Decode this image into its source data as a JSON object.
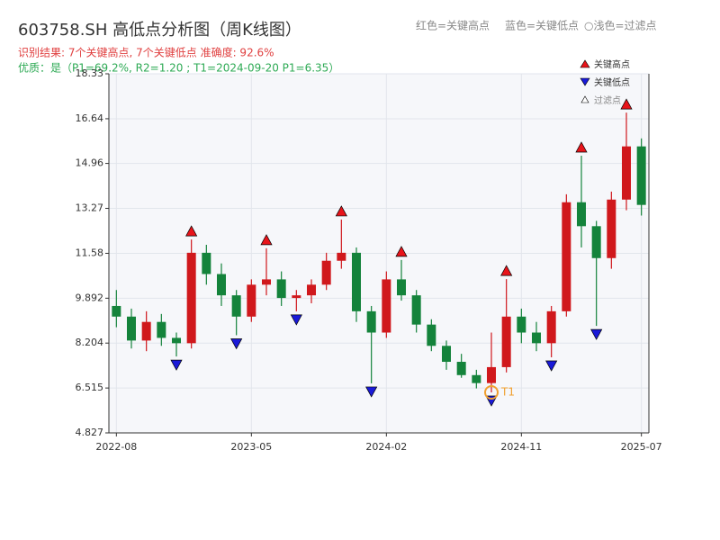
{
  "chart_data": {
    "type": "candlestick",
    "title": "603758.SH 高低点分析图（周K线图）",
    "subtitle": "识别结果: 7个关键高点, 7个关键低点  准确度: 92.6%",
    "quality": "优质：是（P1=69.2%, R2=1.20 ; T1=2024-09-20 P1=6.35）",
    "header_legend": [
      "红色=关键高点",
      "蓝色=关键低点",
      "○浅色=过滤点"
    ],
    "categories": [
      "2022-08",
      "2022-09",
      "2022-10",
      "2022-11",
      "2022-12",
      "2023-01",
      "2023-02",
      "2023-03",
      "2023-04",
      "2023-05",
      "2023-06",
      "2023-07",
      "2023-08",
      "2023-09",
      "2023-10",
      "2023-11",
      "2023-12",
      "2024-01",
      "2024-02",
      "2024-03",
      "2024-04",
      "2024-05",
      "2024-06",
      "2024-07",
      "2024-08",
      "2024-09",
      "2024-10",
      "2024-11",
      "2024-12",
      "2025-01",
      "2025-02",
      "2025-03",
      "2025-04",
      "2025-05",
      "2025-06",
      "2025-07"
    ],
    "open": [
      9.6,
      9.2,
      8.3,
      9.0,
      8.4,
      8.2,
      11.6,
      10.8,
      10.0,
      9.2,
      10.4,
      10.6,
      9.9,
      10.0,
      10.4,
      11.3,
      11.6,
      9.4,
      8.6,
      10.6,
      10.0,
      8.9,
      8.1,
      7.5,
      7.0,
      6.7,
      7.3,
      9.2,
      8.6,
      8.2,
      9.4,
      13.5,
      12.6,
      11.4,
      13.6,
      15.6
    ],
    "high": [
      10.2,
      9.5,
      9.4,
      9.3,
      8.6,
      12.1,
      11.9,
      11.2,
      10.2,
      10.6,
      11.77,
      10.9,
      10.2,
      10.6,
      11.6,
      12.85,
      11.8,
      9.6,
      10.9,
      11.33,
      10.2,
      9.1,
      8.3,
      7.8,
      7.2,
      8.6,
      10.61,
      9.5,
      9.0,
      9.6,
      13.8,
      15.25,
      12.8,
      13.9,
      16.87,
      15.9
    ],
    "low": [
      8.8,
      8.0,
      7.9,
      8.1,
      7.7,
      8.0,
      10.4,
      9.6,
      8.5,
      9.0,
      10.0,
      9.6,
      9.4,
      9.7,
      10.2,
      11.0,
      9.0,
      6.69,
      8.4,
      9.8,
      8.6,
      7.9,
      7.2,
      6.9,
      6.5,
      6.35,
      7.1,
      8.2,
      7.9,
      7.67,
      9.2,
      11.8,
      8.85,
      11.0,
      13.2,
      13.0
    ],
    "close": [
      9.2,
      8.3,
      9.0,
      8.4,
      8.2,
      11.6,
      10.8,
      10.0,
      9.2,
      10.4,
      10.6,
      9.9,
      10.0,
      10.4,
      11.3,
      11.6,
      9.4,
      8.6,
      10.6,
      10.0,
      8.9,
      8.1,
      7.5,
      7.0,
      6.7,
      7.3,
      9.2,
      8.6,
      8.2,
      9.4,
      13.5,
      12.6,
      11.4,
      13.6,
      15.6,
      13.4
    ],
    "up_color": "#d0181c",
    "down_color": "#14833b",
    "key_highs": {
      "name": "关键高点",
      "color": "#e8141a",
      "x": [
        "2023-01",
        "2023-06",
        "2023-11",
        "2024-03",
        "2024-10",
        "2025-03",
        "2025-06"
      ],
      "values": [
        12.1,
        11.77,
        12.85,
        11.33,
        10.61,
        15.25,
        16.87
      ]
    },
    "key_lows": {
      "name": "关键低点",
      "color": "#1a1ad8",
      "x": [
        "2022-12",
        "2023-04",
        "2023-08",
        "2024-01",
        "2024-09",
        "2025-01",
        "2025-04"
      ],
      "values": [
        7.7,
        8.5,
        9.4,
        6.69,
        6.35,
        7.67,
        8.85
      ]
    },
    "filtered": {
      "name": "过滤点",
      "color": "#ffffff"
    },
    "annotation": {
      "text": "T1",
      "x": "2024-09",
      "y": 6.35,
      "color": "#f0a030"
    },
    "ylim": [
      4.827,
      18.33
    ],
    "yticks": [
      4.827,
      6.515,
      8.204,
      9.892,
      11.58,
      13.27,
      14.96,
      16.64,
      18.33
    ],
    "xticks": [
      "2022-08",
      "2023-05",
      "2024-02",
      "2024-11",
      "2025-07"
    ],
    "grid": true
  }
}
